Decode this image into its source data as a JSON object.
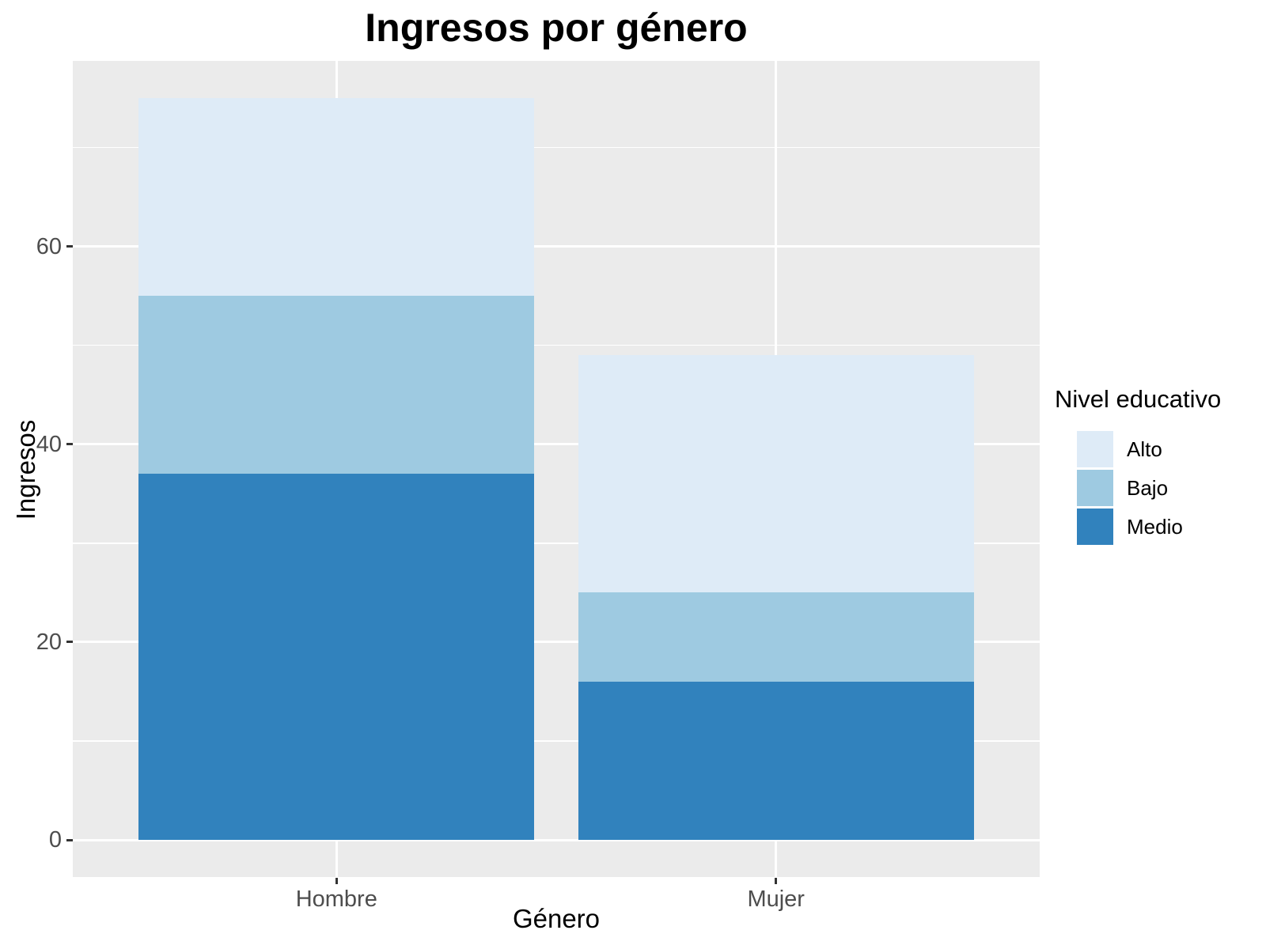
{
  "chart_data": {
    "type": "bar",
    "stacked": true,
    "title": "Ingresos por género",
    "xlabel": "Género",
    "ylabel": "Ingresos",
    "categories": [
      "Hombre",
      "Mujer"
    ],
    "series": [
      {
        "name": "Alto",
        "color": "#DEEBF7",
        "values": [
          20,
          24
        ]
      },
      {
        "name": "Bajo",
        "color": "#9ECAE1",
        "values": [
          18,
          9
        ]
      },
      {
        "name": "Medio",
        "color": "#3182BD",
        "values": [
          37,
          16
        ]
      }
    ],
    "stack_order_bottom_to_top": [
      "Medio",
      "Bajo",
      "Alto"
    ],
    "totals": [
      75,
      49
    ],
    "y_major_ticks": [
      0,
      20,
      40,
      60
    ],
    "y_minor_ticks": [
      10,
      30,
      50,
      70
    ],
    "ylim": [
      -3.75,
      78.75
    ],
    "legend_title": "Nivel educativo",
    "legend_position": "right",
    "grid": true,
    "colors": {
      "panel_background": "#EBEBEB",
      "grid": "#FFFFFF",
      "tick_label": "#4D4D4D",
      "tick_mark": "#333333",
      "text": "#000000"
    }
  }
}
